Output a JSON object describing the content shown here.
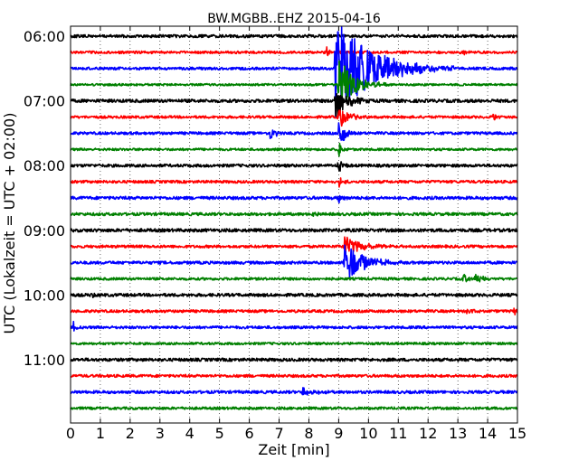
{
  "chart_data": {
    "type": "line",
    "title": "BW.MGBB..EHZ 2015-04-16",
    "xlabel": "Zeit  [min]",
    "ylabel": "UTC (Lokalzeit = UTC + 02:00)",
    "xlim": [
      0,
      15
    ],
    "x_ticks": [
      "0",
      "1",
      "2",
      "3",
      "4",
      "5",
      "6",
      "7",
      "8",
      "9",
      "10",
      "11",
      "12",
      "13",
      "14",
      "15"
    ],
    "y_ticks": [
      "06:00",
      "07:00",
      "08:00",
      "09:00",
      "10:00",
      "11:00"
    ],
    "grid": true,
    "trace_colors": [
      "#000000",
      "#ff0000",
      "#0000ff",
      "#008000"
    ],
    "traces": [
      {
        "start": "06:00",
        "noise": 1.6,
        "events": []
      },
      {
        "start": "06:15",
        "noise": 1.4,
        "events": [
          {
            "t": 8.6,
            "amp": 6,
            "dur": 0.25
          },
          {
            "t": 13.2,
            "amp": 3,
            "dur": 0.1
          }
        ]
      },
      {
        "start": "06:30",
        "noise": 1.5,
        "events": [
          {
            "t": 8.9,
            "amp": 60,
            "dur": 1.8
          },
          {
            "t": 12.6,
            "amp": 3,
            "dur": 0.1
          }
        ]
      },
      {
        "start": "06:45",
        "noise": 1.2,
        "events": [
          {
            "t": 9.0,
            "amp": 30,
            "dur": 0.8
          }
        ]
      },
      {
        "start": "07:00",
        "noise": 1.8,
        "events": [
          {
            "t": 8.9,
            "amp": 20,
            "dur": 0.6
          }
        ]
      },
      {
        "start": "07:15",
        "noise": 1.4,
        "events": [
          {
            "t": 9.0,
            "amp": 12,
            "dur": 0.5
          },
          {
            "t": 14.2,
            "amp": 8,
            "dur": 0.1
          }
        ]
      },
      {
        "start": "07:30",
        "noise": 1.5,
        "events": [
          {
            "t": 6.7,
            "amp": 8,
            "dur": 0.25
          },
          {
            "t": 9.0,
            "amp": 22,
            "dur": 0.3
          }
        ]
      },
      {
        "start": "07:45",
        "noise": 1.3,
        "events": [
          {
            "t": 9.0,
            "amp": 10,
            "dur": 0.2
          }
        ]
      },
      {
        "start": "08:00",
        "noise": 1.6,
        "events": [
          {
            "t": 9.0,
            "amp": 8,
            "dur": 0.2
          }
        ]
      },
      {
        "start": "08:15",
        "noise": 1.5,
        "events": [
          {
            "t": 9.0,
            "amp": 6,
            "dur": 0.2
          }
        ]
      },
      {
        "start": "08:30",
        "noise": 1.7,
        "events": [
          {
            "t": 9.0,
            "amp": 5,
            "dur": 0.2
          }
        ]
      },
      {
        "start": "08:45",
        "noise": 1.6,
        "events": [
          {
            "t": 8.1,
            "amp": 4,
            "dur": 0.2
          }
        ]
      },
      {
        "start": "09:00",
        "noise": 1.8,
        "events": []
      },
      {
        "start": "09:15",
        "noise": 1.5,
        "events": [
          {
            "t": 9.2,
            "amp": 12,
            "dur": 0.8
          }
        ]
      },
      {
        "start": "09:30",
        "noise": 1.6,
        "events": [
          {
            "t": 9.2,
            "amp": 25,
            "dur": 0.9
          }
        ]
      },
      {
        "start": "09:45",
        "noise": 1.4,
        "events": [
          {
            "t": 13.2,
            "amp": 6,
            "dur": 0.2
          },
          {
            "t": 13.6,
            "amp": 8,
            "dur": 0.25
          }
        ]
      },
      {
        "start": "10:00",
        "noise": 1.7,
        "events": [
          {
            "t": 0.7,
            "amp": 5,
            "dur": 0.1
          }
        ]
      },
      {
        "start": "10:15",
        "noise": 1.5,
        "events": [
          {
            "t": 13.3,
            "amp": 4,
            "dur": 0.3
          },
          {
            "t": 14.9,
            "amp": 6,
            "dur": 0.1
          }
        ]
      },
      {
        "start": "10:30",
        "noise": 1.5,
        "events": [
          {
            "t": 0.1,
            "amp": 6,
            "dur": 0.1
          }
        ]
      },
      {
        "start": "10:45",
        "noise": 1.3,
        "events": []
      },
      {
        "start": "11:00",
        "noise": 1.7,
        "events": []
      },
      {
        "start": "11:15",
        "noise": 1.5,
        "events": []
      },
      {
        "start": "11:30",
        "noise": 1.6,
        "events": [
          {
            "t": 7.8,
            "amp": 6,
            "dur": 0.5
          }
        ]
      },
      {
        "start": "11:45",
        "noise": 1.4,
        "events": []
      }
    ]
  }
}
